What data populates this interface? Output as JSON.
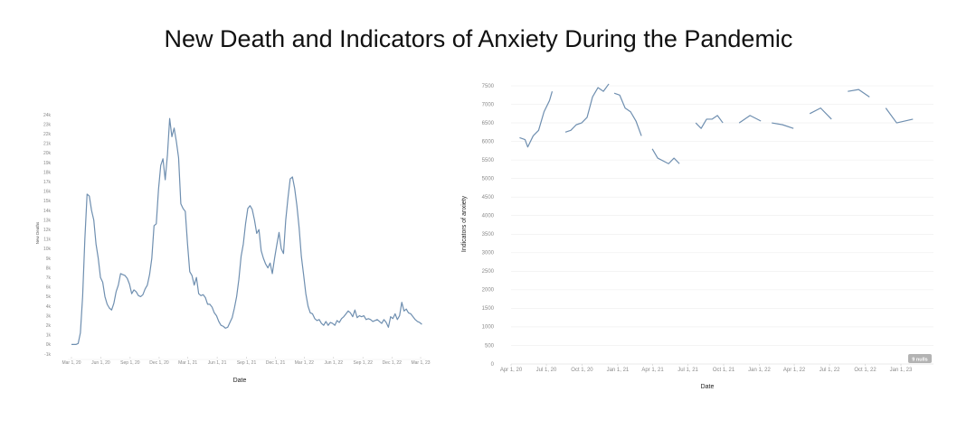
{
  "page": {
    "title": "New Death and Indicators of Anxiety During the Pandemic"
  },
  "chart_data": [
    {
      "type": "line",
      "title": "",
      "xlabel": "Date",
      "ylabel": "New Deaths",
      "ylim": [
        -1000,
        24000
      ],
      "grid": false,
      "y_ticks": [
        "-1k",
        "0k",
        "1k",
        "2k",
        "3k",
        "4k",
        "5k",
        "6k",
        "7k",
        "8k",
        "9k",
        "10k",
        "11k",
        "12k",
        "13k",
        "14k",
        "15k",
        "16k",
        "17k",
        "18k",
        "19k",
        "20k",
        "21k",
        "22k",
        "23k",
        "24k"
      ],
      "x_ticks": [
        {
          "date": "2020-03-01",
          "label": "Mar 1, 20"
        },
        {
          "date": "2020-06-01",
          "label": "Jun 1, 20"
        },
        {
          "date": "2020-09-01",
          "label": "Sep 1, 20"
        },
        {
          "date": "2020-12-01",
          "label": "Dec 1, 20"
        },
        {
          "date": "2021-03-01",
          "label": "Mar 1, 21"
        },
        {
          "date": "2021-06-01",
          "label": "Jun 1, 21"
        },
        {
          "date": "2021-09-01",
          "label": "Sep 1, 21"
        },
        {
          "date": "2021-12-01",
          "label": "Dec 1, 21"
        },
        {
          "date": "2022-03-01",
          "label": "Mar 1, 22"
        },
        {
          "date": "2022-06-01",
          "label": "Jun 1, 22"
        },
        {
          "date": "2022-09-01",
          "label": "Sep 1, 22"
        },
        {
          "date": "2022-12-01",
          "label": "Dec 1, 22"
        },
        {
          "date": "2023-03-01",
          "label": "Mar 1, 23"
        }
      ],
      "series": [
        {
          "values": [
            [
              "2020-03-01",
              0
            ],
            [
              "2020-03-15",
              0
            ],
            [
              "2020-03-22",
              100
            ],
            [
              "2020-03-29",
              1200
            ],
            [
              "2020-04-05",
              5000
            ],
            [
              "2020-04-12",
              11000
            ],
            [
              "2020-04-19",
              15700
            ],
            [
              "2020-04-26",
              15500
            ],
            [
              "2020-05-03",
              14000
            ],
            [
              "2020-05-10",
              13000
            ],
            [
              "2020-05-17",
              10500
            ],
            [
              "2020-05-24",
              9000
            ],
            [
              "2020-05-31",
              7000
            ],
            [
              "2020-06-07",
              6500
            ],
            [
              "2020-06-14",
              5000
            ],
            [
              "2020-06-21",
              4200
            ],
            [
              "2020-06-28",
              3800
            ],
            [
              "2020-07-05",
              3600
            ],
            [
              "2020-07-12",
              4300
            ],
            [
              "2020-07-19",
              5500
            ],
            [
              "2020-07-26",
              6200
            ],
            [
              "2020-08-02",
              7400
            ],
            [
              "2020-08-09",
              7300
            ],
            [
              "2020-08-16",
              7200
            ],
            [
              "2020-08-23",
              6900
            ],
            [
              "2020-08-30",
              6300
            ],
            [
              "2020-09-06",
              5300
            ],
            [
              "2020-09-13",
              5700
            ],
            [
              "2020-09-20",
              5500
            ],
            [
              "2020-09-27",
              5100
            ],
            [
              "2020-10-04",
              5000
            ],
            [
              "2020-10-11",
              5200
            ],
            [
              "2020-10-18",
              5800
            ],
            [
              "2020-10-25",
              6200
            ],
            [
              "2020-11-01",
              7300
            ],
            [
              "2020-11-08",
              9000
            ],
            [
              "2020-11-15",
              12400
            ],
            [
              "2020-11-22",
              12600
            ],
            [
              "2020-11-29",
              16200
            ],
            [
              "2020-12-06",
              18700
            ],
            [
              "2020-12-13",
              19400
            ],
            [
              "2020-12-20",
              17200
            ],
            [
              "2020-12-27",
              19800
            ],
            [
              "2021-01-03",
              23600
            ],
            [
              "2021-01-10",
              21700
            ],
            [
              "2021-01-17",
              22600
            ],
            [
              "2021-01-24",
              21200
            ],
            [
              "2021-01-31",
              19500
            ],
            [
              "2021-02-07",
              14700
            ],
            [
              "2021-02-14",
              14200
            ],
            [
              "2021-02-21",
              13900
            ],
            [
              "2021-02-28",
              10500
            ],
            [
              "2021-03-07",
              7600
            ],
            [
              "2021-03-14",
              7200
            ],
            [
              "2021-03-21",
              6200
            ],
            [
              "2021-03-28",
              7000
            ],
            [
              "2021-04-04",
              5300
            ],
            [
              "2021-04-11",
              5100
            ],
            [
              "2021-04-18",
              5200
            ],
            [
              "2021-04-25",
              4900
            ],
            [
              "2021-05-02",
              4200
            ],
            [
              "2021-05-09",
              4200
            ],
            [
              "2021-05-16",
              3900
            ],
            [
              "2021-05-23",
              3300
            ],
            [
              "2021-05-30",
              3000
            ],
            [
              "2021-06-06",
              2400
            ],
            [
              "2021-06-13",
              2000
            ],
            [
              "2021-06-20",
              1900
            ],
            [
              "2021-06-27",
              1700
            ],
            [
              "2021-07-04",
              1800
            ],
            [
              "2021-07-11",
              2300
            ],
            [
              "2021-07-18",
              2800
            ],
            [
              "2021-07-25",
              3800
            ],
            [
              "2021-08-01",
              5000
            ],
            [
              "2021-08-08",
              6800
            ],
            [
              "2021-08-15",
              9200
            ],
            [
              "2021-08-22",
              10500
            ],
            [
              "2021-08-29",
              12600
            ],
            [
              "2021-09-05",
              14200
            ],
            [
              "2021-09-12",
              14500
            ],
            [
              "2021-09-19",
              14100
            ],
            [
              "2021-09-26",
              13000
            ],
            [
              "2021-10-03",
              11600
            ],
            [
              "2021-10-10",
              12000
            ],
            [
              "2021-10-17",
              9800
            ],
            [
              "2021-10-24",
              9000
            ],
            [
              "2021-10-31",
              8400
            ],
            [
              "2021-11-07",
              8000
            ],
            [
              "2021-11-14",
              8500
            ],
            [
              "2021-11-21",
              7400
            ],
            [
              "2021-11-28",
              9000
            ],
            [
              "2021-12-05",
              10400
            ],
            [
              "2021-12-12",
              11700
            ],
            [
              "2021-12-19",
              10000
            ],
            [
              "2021-12-26",
              9500
            ],
            [
              "2022-01-02",
              13000
            ],
            [
              "2022-01-09",
              15300
            ],
            [
              "2022-01-16",
              17300
            ],
            [
              "2022-01-23",
              17500
            ],
            [
              "2022-01-30",
              16300
            ],
            [
              "2022-02-06",
              14500
            ],
            [
              "2022-02-13",
              12200
            ],
            [
              "2022-02-20",
              9200
            ],
            [
              "2022-02-27",
              7300
            ],
            [
              "2022-03-06",
              5300
            ],
            [
              "2022-03-13",
              4000
            ],
            [
              "2022-03-20",
              3300
            ],
            [
              "2022-03-27",
              3200
            ],
            [
              "2022-04-03",
              2700
            ],
            [
              "2022-04-10",
              2500
            ],
            [
              "2022-04-17",
              2600
            ],
            [
              "2022-04-24",
              2200
            ],
            [
              "2022-05-01",
              2000
            ],
            [
              "2022-05-08",
              2400
            ],
            [
              "2022-05-15",
              2000
            ],
            [
              "2022-05-22",
              2300
            ],
            [
              "2022-05-29",
              2200
            ],
            [
              "2022-06-05",
              2000
            ],
            [
              "2022-06-12",
              2500
            ],
            [
              "2022-06-19",
              2300
            ],
            [
              "2022-06-26",
              2700
            ],
            [
              "2022-07-03",
              2900
            ],
            [
              "2022-07-10",
              3200
            ],
            [
              "2022-07-17",
              3500
            ],
            [
              "2022-07-24",
              3300
            ],
            [
              "2022-07-31",
              2900
            ],
            [
              "2022-08-07",
              3600
            ],
            [
              "2022-08-14",
              2800
            ],
            [
              "2022-08-21",
              3000
            ],
            [
              "2022-08-28",
              2900
            ],
            [
              "2022-09-04",
              3000
            ],
            [
              "2022-09-11",
              2600
            ],
            [
              "2022-09-18",
              2700
            ],
            [
              "2022-09-25",
              2600
            ],
            [
              "2022-10-02",
              2400
            ],
            [
              "2022-10-09",
              2500
            ],
            [
              "2022-10-16",
              2600
            ],
            [
              "2022-10-23",
              2400
            ],
            [
              "2022-10-30",
              2200
            ],
            [
              "2022-11-06",
              2600
            ],
            [
              "2022-11-13",
              2300
            ],
            [
              "2022-11-20",
              1800
            ],
            [
              "2022-11-27",
              2900
            ],
            [
              "2022-12-04",
              2700
            ],
            [
              "2022-12-11",
              3200
            ],
            [
              "2022-12-18",
              2600
            ],
            [
              "2022-12-25",
              3000
            ],
            [
              "2023-01-01",
              4400
            ],
            [
              "2023-01-08",
              3500
            ],
            [
              "2023-01-15",
              3700
            ],
            [
              "2023-01-22",
              3300
            ],
            [
              "2023-01-29",
              3200
            ],
            [
              "2023-02-05",
              2900
            ],
            [
              "2023-02-12",
              2600
            ],
            [
              "2023-02-19",
              2400
            ],
            [
              "2023-02-26",
              2300
            ],
            [
              "2023-03-05",
              2100
            ]
          ]
        }
      ]
    },
    {
      "type": "line",
      "title": "",
      "xlabel": "Date",
      "ylabel": "Indicators of anxiety",
      "ylim": [
        0,
        7500
      ],
      "grid": true,
      "y_ticks": [
        "0",
        "500",
        "1000",
        "1500",
        "2000",
        "2500",
        "3000",
        "3500",
        "4000",
        "4500",
        "5000",
        "5500",
        "6000",
        "6500",
        "7000",
        "7500"
      ],
      "x_ticks": [
        {
          "date": "2020-04-01",
          "label": "Apr 1, 20"
        },
        {
          "date": "2020-07-01",
          "label": "Jul 1, 20"
        },
        {
          "date": "2020-10-01",
          "label": "Oct 1, 20"
        },
        {
          "date": "2021-01-01",
          "label": "Jan 1, 21"
        },
        {
          "date": "2021-04-01",
          "label": "Apr 1, 21"
        },
        {
          "date": "2021-07-01",
          "label": "Jul 1, 21"
        },
        {
          "date": "2021-10-01",
          "label": "Oct 1, 21"
        },
        {
          "date": "2022-01-01",
          "label": "Jan 1, 22"
        },
        {
          "date": "2022-04-01",
          "label": "Apr 1, 22"
        },
        {
          "date": "2022-07-01",
          "label": "Jul 1, 22"
        },
        {
          "date": "2022-10-01",
          "label": "Oct 1, 22"
        },
        {
          "date": "2023-01-01",
          "label": "Jan 1, 23"
        }
      ],
      "null_badge": "9 nulls",
      "series": [
        {
          "segments": [
            [
              [
                "2020-04-23",
                6100
              ],
              [
                "2020-05-07",
                6050
              ],
              [
                "2020-05-14",
                5850
              ],
              [
                "2020-05-28",
                6150
              ],
              [
                "2020-06-11",
                6300
              ],
              [
                "2020-06-25",
                6800
              ],
              [
                "2020-07-09",
                7100
              ],
              [
                "2020-07-16",
                7350
              ]
            ],
            [
              [
                "2020-08-19",
                6250
              ],
              [
                "2020-09-02",
                6300
              ],
              [
                "2020-09-16",
                6450
              ],
              [
                "2020-09-30",
                6500
              ],
              [
                "2020-10-14",
                6650
              ],
              [
                "2020-10-28",
                7200
              ],
              [
                "2020-11-11",
                7450
              ],
              [
                "2020-11-25",
                7350
              ],
              [
                "2020-12-09",
                7550
              ]
            ],
            [
              [
                "2020-12-23",
                7300
              ],
              [
                "2021-01-06",
                7250
              ],
              [
                "2021-01-20",
                6900
              ],
              [
                "2021-02-03",
                6800
              ],
              [
                "2021-02-17",
                6550
              ],
              [
                "2021-03-03",
                6150
              ]
            ],
            [
              [
                "2021-03-31",
                5800
              ],
              [
                "2021-04-14",
                5550
              ],
              [
                "2021-05-12",
                5400
              ],
              [
                "2021-05-26",
                5550
              ],
              [
                "2021-06-09",
                5400
              ]
            ],
            [
              [
                "2021-07-21",
                6500
              ],
              [
                "2021-08-04",
                6350
              ],
              [
                "2021-08-18",
                6600
              ],
              [
                "2021-09-01",
                6600
              ],
              [
                "2021-09-15",
                6700
              ],
              [
                "2021-09-29",
                6500
              ]
            ],
            [
              [
                "2021-11-10",
                6500
              ],
              [
                "2021-12-08",
                6700
              ],
              [
                "2022-01-05",
                6550
              ]
            ],
            [
              [
                "2022-02-02",
                6500
              ],
              [
                "2022-03-02",
                6450
              ],
              [
                "2022-03-30",
                6350
              ]
            ],
            [
              [
                "2022-05-11",
                6750
              ],
              [
                "2022-06-08",
                6900
              ],
              [
                "2022-07-06",
                6600
              ]
            ],
            [
              [
                "2022-08-17",
                7350
              ],
              [
                "2022-09-14",
                7400
              ],
              [
                "2022-10-12",
                7200
              ]
            ],
            [
              [
                "2022-11-23",
                6900
              ],
              [
                "2022-12-21",
                6500
              ],
              [
                "2023-02-01",
                6600
              ]
            ]
          ]
        }
      ]
    }
  ]
}
